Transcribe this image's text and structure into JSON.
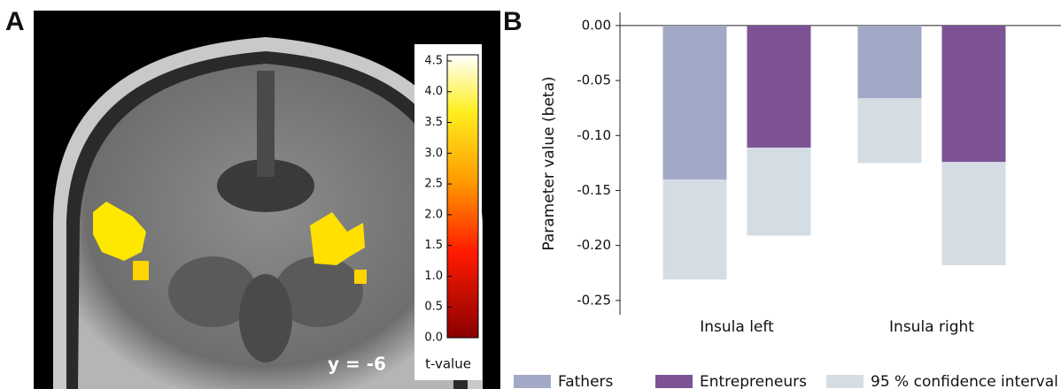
{
  "panel_labels": [
    "A",
    "B"
  ],
  "chart_data": [
    {
      "type": "colorbar",
      "title": "t-value",
      "annotation": "y = -6",
      "ylim": [
        0,
        4.6
      ],
      "yticks": [
        {
          "value": 0,
          "label": "0.0"
        },
        0.5,
        {
          "value": 1,
          "label": "1.0"
        },
        1.5,
        {
          "value": 2,
          "label": "2.0"
        },
        2.5,
        {
          "value": 3,
          "label": "3.0"
        },
        3.5,
        {
          "value": 4,
          "label": "4.0"
        },
        4.5
      ]
    },
    {
      "type": "bar",
      "y_label": "Parameter value (beta)",
      "categories": [
        "Insula left",
        "Insula right"
      ],
      "series": [
        {
          "name": "Fathers",
          "color": "#a2a9c6",
          "values": [
            -0.14,
            -0.066
          ],
          "ci_low": [
            -0.231,
            -0.125
          ]
        },
        {
          "name": "Entrepreneurs",
          "color": "#7d5395",
          "values": [
            -0.111,
            -0.124
          ],
          "ci_low": [
            -0.191,
            -0.218
          ]
        }
      ],
      "ci_name": "95 % confidence interval",
      "ci_color": "#d5dde4",
      "ylim": [
        -0.263,
        0.012
      ],
      "yticks": [
        {
          "value": 0,
          "label": "0.00"
        },
        -0.05,
        {
          "value": -0.1,
          "label": "-0.10"
        },
        -0.15,
        {
          "value": -0.2,
          "label": "-0.20"
        },
        -0.25
      ],
      "legend": "bottom"
    }
  ]
}
